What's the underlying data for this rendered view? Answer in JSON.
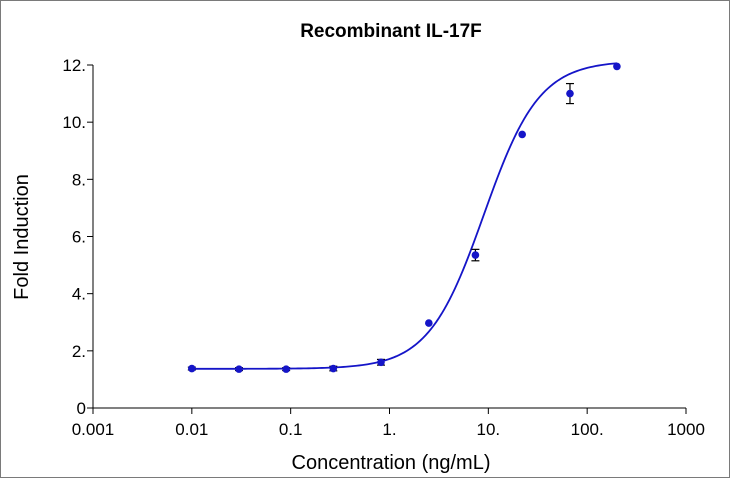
{
  "chart_data": {
    "type": "scatter",
    "title": "Recombinant IL-17F",
    "xlabel": "Concentration (ng/mL)",
    "ylabel": "Fold Induction",
    "x_scale": "log",
    "xlim": [
      0.001,
      1000
    ],
    "ylim": [
      0,
      12
    ],
    "grid": false,
    "legend": "none",
    "x_ticks": [
      {
        "value": 0.001,
        "label": "0.001"
      },
      {
        "value": 0.01,
        "label": "0.01"
      },
      {
        "value": 0.1,
        "label": "0.1"
      },
      {
        "value": 1,
        "label": "1."
      },
      {
        "value": 10,
        "label": "10."
      },
      {
        "value": 100,
        "label": "100."
      },
      {
        "value": 1000,
        "label": "1000"
      }
    ],
    "y_ticks": [
      {
        "value": 0,
        "label": "0"
      },
      {
        "value": 2,
        "label": "2."
      },
      {
        "value": 4,
        "label": "4."
      },
      {
        "value": 6,
        "label": "6."
      },
      {
        "value": 8,
        "label": "8."
      },
      {
        "value": 10,
        "label": "10."
      },
      {
        "value": 12,
        "label": "12."
      }
    ],
    "points": [
      {
        "x": 0.01,
        "y": 1.38,
        "err": 0.05
      },
      {
        "x": 0.03,
        "y": 1.36,
        "err": 0.05
      },
      {
        "x": 0.09,
        "y": 1.36,
        "err": 0.05
      },
      {
        "x": 0.27,
        "y": 1.38,
        "err": 0.08
      },
      {
        "x": 0.82,
        "y": 1.6,
        "err": 0.1
      },
      {
        "x": 2.5,
        "y": 2.97,
        "err": 0
      },
      {
        "x": 7.4,
        "y": 5.35,
        "err": 0.2
      },
      {
        "x": 22,
        "y": 9.57,
        "err": 0
      },
      {
        "x": 67,
        "y": 11.0,
        "err": 0.35
      },
      {
        "x": 200,
        "y": 11.95,
        "err": 0
      }
    ],
    "fit_curve": {
      "model": "4PL",
      "bottom": 1.37,
      "top": 12.15,
      "ec50": 9.0,
      "hill": 1.55,
      "x_range": [
        0.01,
        200
      ]
    },
    "colors": {
      "points": "#1515c8",
      "curve": "#1515c8",
      "error_bars": "#000000",
      "axes": "#000000"
    }
  }
}
